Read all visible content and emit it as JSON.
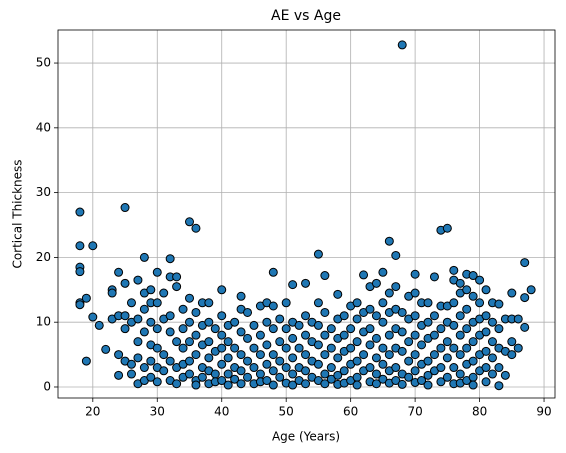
{
  "chart_data": {
    "type": "scatter",
    "title": "AE vs Age",
    "x_label": "Age (Years)",
    "y_label": "Cortical Thickness",
    "color": "#1f77b4",
    "edge_color": "#000000",
    "grid": true,
    "xlim": [
      14.6,
      91.7
    ],
    "ylim": [
      -1.7,
      55.1
    ],
    "xticks": [
      20,
      30,
      40,
      50,
      60,
      70,
      80,
      90
    ],
    "yticks": [
      0,
      10,
      20,
      30,
      40,
      50
    ],
    "x": [
      18,
      18,
      18,
      18,
      18,
      18,
      19,
      19,
      20,
      20,
      21,
      22,
      23,
      23,
      23,
      24,
      24,
      24,
      24,
      25,
      25,
      25,
      25,
      25,
      26,
      26,
      26,
      26,
      27,
      27,
      27,
      27,
      27,
      28,
      28,
      28,
      28,
      28,
      28,
      29,
      29,
      29,
      29,
      29,
      29,
      30,
      30,
      30,
      30,
      30,
      30,
      31,
      31,
      31,
      31,
      32,
      32,
      32,
      32,
      32,
      32,
      33,
      33,
      33,
      33,
      33,
      34,
      34,
      34,
      34,
      34,
      35,
      35,
      35,
      35,
      35,
      35,
      36,
      36,
      36,
      36,
      36,
      36,
      37,
      37,
      37,
      37,
      37,
      38,
      38,
      38,
      38,
      38,
      38,
      39,
      39,
      39,
      39,
      40,
      40,
      40,
      40,
      40,
      40,
      41,
      41,
      41,
      41,
      41,
      42,
      42,
      42,
      42,
      43,
      43,
      43,
      43,
      43,
      43,
      44,
      44,
      44,
      44,
      45,
      45,
      45,
      45,
      46,
      46,
      46,
      46,
      46,
      47,
      47,
      47,
      47,
      47,
      48,
      48,
      48,
      48,
      48,
      48,
      49,
      49,
      49,
      49,
      50,
      50,
      50,
      50,
      50,
      51,
      51,
      51,
      51,
      51,
      51,
      52,
      52,
      52,
      52,
      53,
      53,
      53,
      53,
      53,
      53,
      54,
      54,
      54,
      54,
      55,
      55,
      55,
      55,
      55,
      55,
      56,
      56,
      56,
      56,
      56,
      56,
      57,
      57,
      57,
      57,
      58,
      58,
      58,
      58,
      58,
      58,
      59,
      59,
      59,
      59,
      59,
      60,
      60,
      60,
      60,
      60,
      61,
      61,
      61,
      61,
      61,
      61,
      62,
      62,
      62,
      62,
      62,
      63,
      63,
      63,
      63,
      63,
      63,
      64,
      64,
      64,
      64,
      64,
      64,
      65,
      65,
      65,
      65,
      65,
      65,
      66,
      66,
      66,
      66,
      66,
      66,
      66,
      67,
      67,
      67,
      67,
      67,
      67,
      67,
      68,
      68,
      68,
      68,
      68,
      68,
      69,
      69,
      69,
      69,
      69,
      70,
      70,
      70,
      70,
      70,
      70,
      70,
      71,
      71,
      71,
      71,
      71,
      72,
      72,
      72,
      72,
      72,
      72,
      73,
      73,
      73,
      73,
      73,
      74,
      74,
      74,
      74,
      74,
      74,
      75,
      75,
      75,
      75,
      75,
      75,
      76,
      76,
      76,
      76,
      76,
      76,
      76,
      77,
      77,
      77,
      77,
      77,
      77,
      77,
      78,
      78,
      78,
      78,
      78,
      78,
      78,
      79,
      79,
      79,
      79,
      79,
      79,
      79,
      80,
      80,
      80,
      80,
      80,
      80,
      81,
      81,
      81,
      81,
      81,
      81,
      82,
      82,
      82,
      82,
      82,
      83,
      83,
      83,
      83,
      83,
      84,
      84,
      84,
      85,
      85,
      85,
      85,
      86,
      86,
      87,
      87,
      87,
      88
    ],
    "values": [
      27,
      21.8,
      18.5,
      17.8,
      13,
      12.7,
      13.7,
      4,
      21.8,
      10.8,
      9.5,
      5.8,
      15,
      14.5,
      10.5,
      17.7,
      11,
      5,
      1.8,
      27.7,
      16,
      11,
      9,
      4,
      13,
      10,
      3.5,
      2,
      16.5,
      10.5,
      7,
      4.5,
      0.5,
      20,
      14.5,
      12,
      8.5,
      3,
      1,
      15,
      13,
      10,
      6.5,
      4,
      1.5,
      17.7,
      13,
      9,
      6,
      3,
      0.8,
      14.5,
      10.5,
      5,
      2.5,
      19.8,
      17,
      11,
      8.5,
      4,
      1,
      17,
      15.5,
      7,
      3,
      0.5,
      12,
      9,
      6,
      3.5,
      1.5,
      25.5,
      13.7,
      10,
      7,
      4,
      2,
      24.5,
      11.5,
      8,
      5,
      1,
      0.3,
      13,
      9.5,
      6.5,
      3,
      1.5,
      13,
      10,
      7,
      4.5,
      2.5,
      0.5,
      9,
      5.5,
      2,
      0.8,
      15,
      11,
      8,
      6,
      3.5,
      1,
      9.5,
      7,
      4.5,
      2,
      0.3,
      10,
      6,
      3,
      1.2,
      14,
      12,
      8.5,
      5,
      2.5,
      0.5,
      11.5,
      7.5,
      4,
      1.5,
      9.5,
      6,
      3,
      0.5,
      12.5,
      8,
      5,
      2,
      0.8,
      13,
      10,
      6.5,
      3.5,
      1,
      17.7,
      12.5,
      9,
      5,
      2.5,
      0.3,
      10.5,
      7,
      4,
      1.5,
      13,
      9,
      6,
      3,
      0.6,
      15.8,
      10,
      7.5,
      4.5,
      2,
      0.3,
      9.5,
      6,
      3,
      1,
      16,
      11,
      8,
      5,
      2.5,
      0.5,
      10,
      7,
      4,
      1.5,
      20.5,
      13,
      9.5,
      6.5,
      3.5,
      1,
      17.2,
      11.5,
      8,
      5,
      2,
      0.5,
      9,
      6,
      3,
      1.2,
      14.3,
      10.5,
      7.5,
      4.5,
      1.8,
      0.4,
      11,
      8,
      5.5,
      2.5,
      0.6,
      12.5,
      9,
      6,
      3.5,
      1,
      13,
      10.5,
      7,
      4,
      1.5,
      0.3,
      17.3,
      11.5,
      8.5,
      5,
      2.5,
      15.5,
      12,
      9,
      6.5,
      3,
      0.8,
      16,
      11,
      7.5,
      4.5,
      2,
      0.5,
      17.7,
      13,
      10,
      6,
      3.5,
      1.2,
      22.5,
      14.5,
      11.5,
      8,
      5,
      2.5,
      0.6,
      20.3,
      15.5,
      12,
      9,
      6,
      3,
      1,
      52.8,
      11.5,
      8.5,
      5.5,
      2,
      0.4,
      14,
      10.5,
      7,
      4,
      1.5,
      17.4,
      14.5,
      11,
      8,
      5,
      2.5,
      0.7,
      13,
      9.5,
      6.5,
      3.5,
      1,
      13,
      10,
      7.5,
      4,
      1.8,
      0.3,
      17,
      11,
      8,
      5,
      2.5,
      24.2,
      12.5,
      9,
      6,
      3,
      0.8,
      24.5,
      12.5,
      10,
      7,
      4.5,
      1.5,
      18,
      16.5,
      13,
      9.5,
      6,
      3,
      0.5,
      16,
      14.5,
      11,
      8,
      5,
      2,
      0.6,
      17.4,
      15,
      12,
      9,
      6,
      3.5,
      1,
      17.2,
      14,
      10,
      7,
      4,
      1.5,
      0.3,
      16.5,
      13,
      10.5,
      8,
      5,
      2.5,
      15,
      11,
      8.5,
      5.5,
      3,
      0.8,
      13,
      10,
      7,
      4.5,
      2,
      12.8,
      9,
      6,
      3,
      0.2,
      10.5,
      5.5,
      1.8,
      14.5,
      10.5,
      7,
      5,
      10.5,
      6,
      19.2,
      13.8,
      9.2,
      15
    ]
  }
}
